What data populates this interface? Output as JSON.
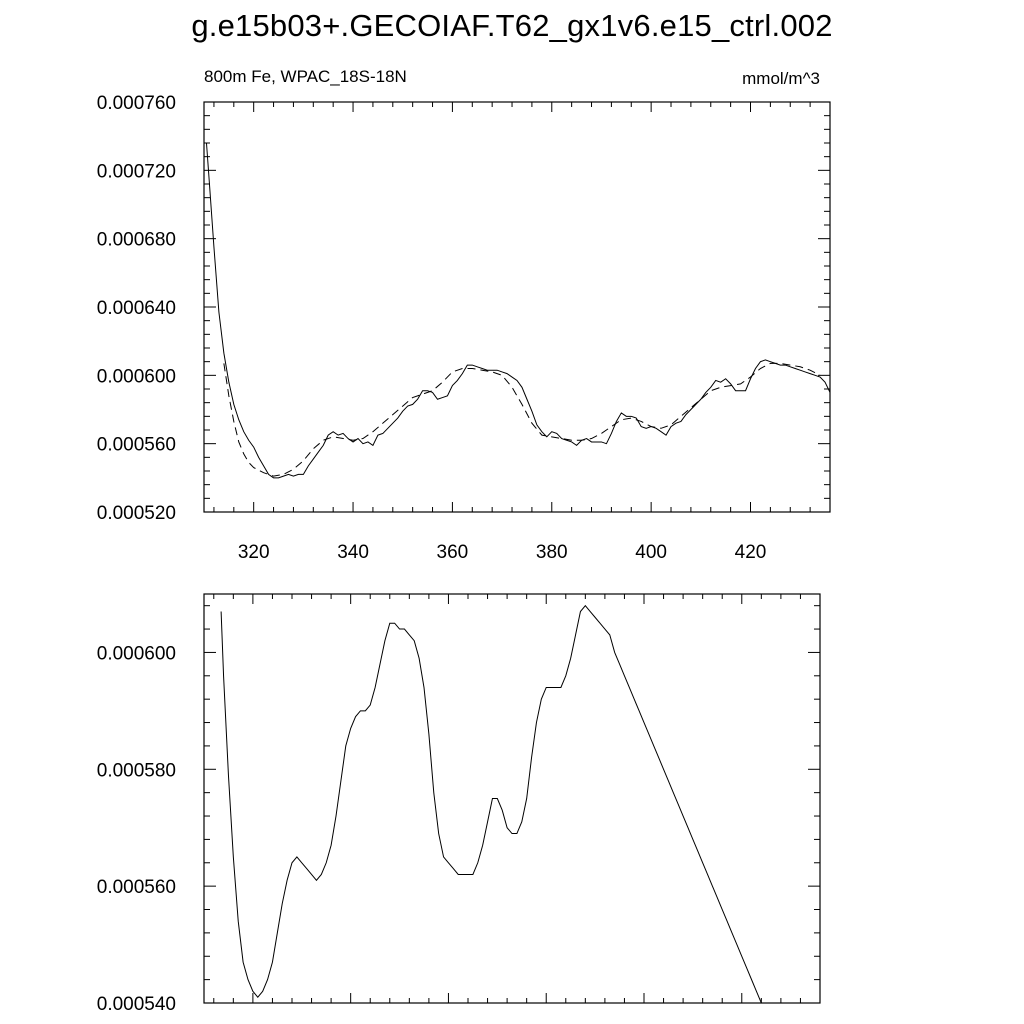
{
  "title": "g.e15b03+.GECOIAF.T62_gx1v6.e15_ctrl.002",
  "left_label": "800m Fe, WPAC_18S-18N",
  "right_label": "mmol/m^3",
  "chart_data": [
    {
      "type": "line",
      "xlim": [
        310,
        436
      ],
      "ylim": [
        0.00052,
        0.00076
      ],
      "x_ticks": [
        320,
        340,
        360,
        380,
        400,
        420
      ],
      "x_tick_labels": [
        "320",
        "340",
        "360",
        "380",
        "400",
        "420"
      ],
      "y_ticks": [
        0.00052,
        0.00056,
        0.0006,
        0.00064,
        0.00068,
        0.00072,
        0.00076
      ],
      "y_tick_labels": [
        "0.000520",
        "0.000560",
        "0.000600",
        "0.000640",
        "0.000680",
        "0.000720",
        "0.000760"
      ],
      "series": [
        {
          "style": "solid",
          "x": [
            310.5,
            311,
            312,
            313,
            314,
            315,
            316,
            317,
            318,
            319,
            320,
            321,
            322,
            323,
            324,
            325,
            326,
            327,
            328,
            329,
            330,
            331,
            332,
            333,
            334,
            335,
            336,
            337,
            338,
            339,
            340,
            341,
            342,
            343,
            344,
            345,
            346,
            347,
            348,
            349,
            350,
            351,
            352,
            353,
            354,
            355,
            356,
            357,
            358,
            359,
            360,
            361,
            362,
            363,
            364,
            365,
            366,
            367,
            368,
            369,
            370,
            371,
            372,
            373,
            374,
            375,
            376,
            377,
            378,
            379,
            380,
            381,
            382,
            383,
            384,
            385,
            386,
            387,
            388,
            389,
            390,
            391,
            392,
            393,
            394,
            395,
            396,
            397,
            398,
            399,
            400,
            401,
            402,
            403,
            404,
            405,
            406,
            407,
            408,
            409,
            410,
            411,
            412,
            413,
            414,
            415,
            416,
            417,
            418,
            419,
            420,
            421,
            422,
            423,
            424,
            425,
            426,
            427,
            428,
            429,
            430,
            431,
            432,
            433,
            434,
            435,
            436
          ],
          "y": [
            0.000736,
            0.000716,
            0.000675,
            0.000637,
            0.000613,
            0.000596,
            0.000583,
            0.000574,
            0.000567,
            0.000562,
            0.000558,
            0.000552,
            0.000547,
            0.000542,
            0.00054,
            0.00054,
            0.000541,
            0.000542,
            0.000541,
            0.000542,
            0.000542,
            0.000547,
            0.000551,
            0.000555,
            0.000559,
            0.000565,
            0.000567,
            0.000565,
            0.000566,
            0.000563,
            0.000561,
            0.000563,
            0.00056,
            0.000561,
            0.000559,
            0.000565,
            0.000566,
            0.000569,
            0.000572,
            0.000575,
            0.000579,
            0.000582,
            0.000583,
            0.000586,
            0.000591,
            0.000591,
            0.00059,
            0.000586,
            0.000587,
            0.000588,
            0.000594,
            0.000597,
            0.000601,
            0.000606,
            0.000606,
            0.000605,
            0.000604,
            0.000603,
            0.000603,
            0.000603,
            0.000602,
            0.000601,
            0.000599,
            0.000597,
            0.000593,
            0.000586,
            0.000579,
            0.000571,
            0.000567,
            0.000564,
            0.000567,
            0.000566,
            0.000563,
            0.000562,
            0.000561,
            0.000559,
            0.000562,
            0.000563,
            0.000561,
            0.000561,
            0.000561,
            0.00056,
            0.000566,
            0.000573,
            0.000578,
            0.000576,
            0.000576,
            0.000575,
            0.00057,
            0.000569,
            0.00057,
            0.000569,
            0.000567,
            0.000565,
            0.00057,
            0.000572,
            0.000573,
            0.000577,
            0.00058,
            0.000583,
            0.000586,
            0.00059,
            0.000593,
            0.000597,
            0.000596,
            0.000598,
            0.000595,
            0.000591,
            0.000591,
            0.000591,
            0.000598,
            0.000604,
            0.000608,
            0.000609,
            0.000608,
            0.000607,
            0.000606,
            0.000606,
            0.000605,
            0.000604,
            0.000603,
            0.000602,
            0.000601,
            0.0006,
            0.000599,
            0.000596,
            0.00059
          ]
        },
        {
          "style": "dashed",
          "x": [
            314,
            315,
            316,
            317,
            318,
            319,
            320,
            322,
            324,
            326,
            328,
            330,
            332,
            334,
            336,
            338,
            340,
            342,
            344,
            346,
            348,
            350,
            352,
            354,
            356,
            358,
            360,
            362,
            364,
            366,
            368,
            370,
            372,
            374,
            376,
            378,
            380,
            382,
            384,
            386,
            388,
            390,
            392,
            394,
            396,
            398,
            400,
            402,
            404,
            406,
            408,
            410,
            412,
            414,
            416,
            418,
            420,
            422,
            424,
            426,
            428,
            430,
            432,
            434
          ],
          "y": [
            0.000607,
            0.000588,
            0.000573,
            0.000561,
            0.000554,
            0.000549,
            0.000546,
            0.000543,
            0.000541,
            0.000542,
            0.000545,
            0.00055,
            0.000557,
            0.000562,
            0.000564,
            0.000563,
            0.000562,
            0.000563,
            0.000567,
            0.000572,
            0.000577,
            0.000582,
            0.000587,
            0.000589,
            0.000591,
            0.000596,
            0.000602,
            0.000604,
            0.000604,
            0.000603,
            0.000602,
            0.0006,
            0.000593,
            0.000583,
            0.000572,
            0.000565,
            0.000564,
            0.000563,
            0.000562,
            0.000562,
            0.000563,
            0.000566,
            0.00057,
            0.000574,
            0.000575,
            0.000573,
            0.00057,
            0.000569,
            0.000571,
            0.000576,
            0.000581,
            0.000586,
            0.000591,
            0.000593,
            0.000594,
            0.000595,
            0.000599,
            0.000604,
            0.000607,
            0.000607,
            0.000606,
            0.000605,
            0.000603,
            0.0006
          ]
        }
      ]
    },
    {
      "type": "line",
      "xlim": [
        310,
        436
      ],
      "ylim": [
        0.00054,
        0.00061
      ],
      "x_ticks": [
        320,
        340,
        360,
        380,
        400,
        420
      ],
      "y_ticks": [
        0.00054,
        0.00056,
        0.00058,
        0.0006
      ],
      "y_tick_labels": [
        "0.000540",
        "0.000560",
        "0.000580",
        "0.000600"
      ],
      "series": [
        {
          "style": "solid",
          "x": [
            313.5,
            314,
            315,
            316,
            317,
            318,
            319,
            320,
            321,
            322,
            323,
            324,
            325,
            326,
            327,
            328,
            329,
            330,
            331,
            332,
            333,
            334,
            335,
            336,
            337,
            338,
            339,
            340,
            341,
            342,
            343,
            344,
            345,
            346,
            347,
            348,
            349,
            350,
            351,
            352,
            353,
            354,
            355,
            356,
            357,
            358,
            359,
            360,
            361,
            362,
            363,
            364,
            365,
            366,
            367,
            368,
            369,
            370,
            371,
            372,
            373,
            374,
            375,
            376,
            377,
            378,
            379,
            380,
            381,
            382,
            383,
            384,
            385,
            386,
            387,
            388,
            389,
            390,
            391,
            392,
            393,
            394,
            395,
            396,
            397,
            398,
            399,
            400,
            401,
            402,
            403,
            404,
            405,
            406,
            407,
            408,
            409,
            410,
            411,
            412,
            413,
            414,
            415,
            416,
            417,
            418,
            419,
            420,
            421,
            422,
            423,
            424,
            425,
            426,
            427,
            428,
            429,
            430,
            431,
            432,
            433
          ],
          "y": [
            0.000607,
            0.000596,
            0.000579,
            0.000565,
            0.000554,
            0.000547,
            0.000544,
            0.000542,
            0.000541,
            0.000542,
            0.000544,
            0.000547,
            0.000552,
            0.000557,
            0.000561,
            0.000564,
            0.000565,
            0.000564,
            0.000563,
            0.000562,
            0.000561,
            0.000562,
            0.000564,
            0.000567,
            0.000572,
            0.000578,
            0.000584,
            0.000587,
            0.000589,
            0.00059,
            0.00059,
            0.000591,
            0.000594,
            0.000598,
            0.000602,
            0.000605,
            0.000605,
            0.000604,
            0.000604,
            0.000603,
            0.000602,
            0.000599,
            0.000594,
            0.000586,
            0.000576,
            0.000569,
            0.000565,
            0.000564,
            0.000563,
            0.000562,
            0.000562,
            0.000562,
            0.000562,
            0.000564,
            0.000567,
            0.000571,
            0.000575,
            0.000575,
            0.000573,
            0.00057,
            0.000569,
            0.000569,
            0.000571,
            0.000575,
            0.000582,
            0.000588,
            0.000592,
            0.000594,
            0.000594,
            0.000594,
            0.000594,
            0.000596,
            0.000599,
            0.000603,
            0.000607,
            0.000608,
            0.000607,
            0.000606,
            0.000605,
            0.000604,
            0.000603,
            0.0006,
            0.000598,
            0.000596,
            0.000594,
            0.000592,
            0.00059,
            0.000588,
            0.000586,
            0.000584,
            0.000582,
            0.00058,
            0.000578,
            0.000576,
            0.000574,
            0.000572,
            0.00057,
            0.000568,
            0.000566,
            0.000564,
            0.000562,
            0.00056,
            0.000558,
            0.000556,
            0.000554,
            0.000552,
            0.00055,
            0.000548,
            0.000546,
            0.000544,
            0.000542,
            0.00054,
            0.00054,
            0.00054,
            0.00054,
            0.00054,
            0.00054,
            0.00054,
            0.00054,
            0.00054,
            0.00054
          ]
        }
      ]
    }
  ]
}
